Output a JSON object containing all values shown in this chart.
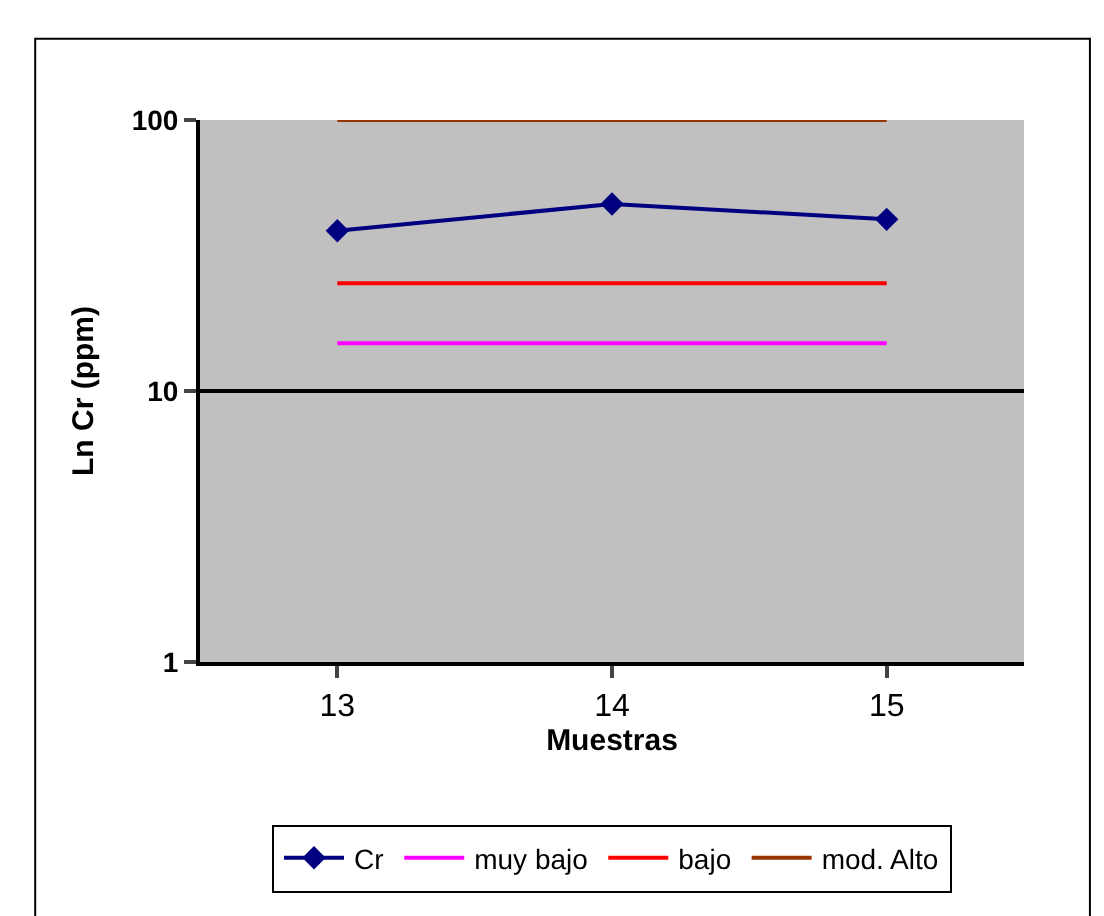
{
  "chart_data": {
    "type": "line",
    "categories": [
      "13",
      "14",
      "15"
    ],
    "xlabel": "Muestras",
    "ylabel": "Ln Cr (ppm)",
    "log": "y",
    "ylim": [
      1,
      100
    ],
    "yticks": [
      1,
      10,
      100
    ],
    "grid": "y",
    "legend": "bottom",
    "series": [
      {
        "name": "Cr",
        "color": "#000080",
        "values": [
          39,
          49,
          43
        ],
        "marker": "diamond"
      },
      {
        "name": "muy bajo",
        "color": "#ff00ff",
        "values": [
          15,
          15,
          15
        ],
        "marker": "none"
      },
      {
        "name": "bajo",
        "color": "#ff0000",
        "values": [
          25,
          25,
          25
        ],
        "marker": "none"
      },
      {
        "name": "mod. Alto",
        "color": "#993300",
        "values": [
          100,
          100,
          100
        ],
        "marker": "none"
      }
    ]
  }
}
